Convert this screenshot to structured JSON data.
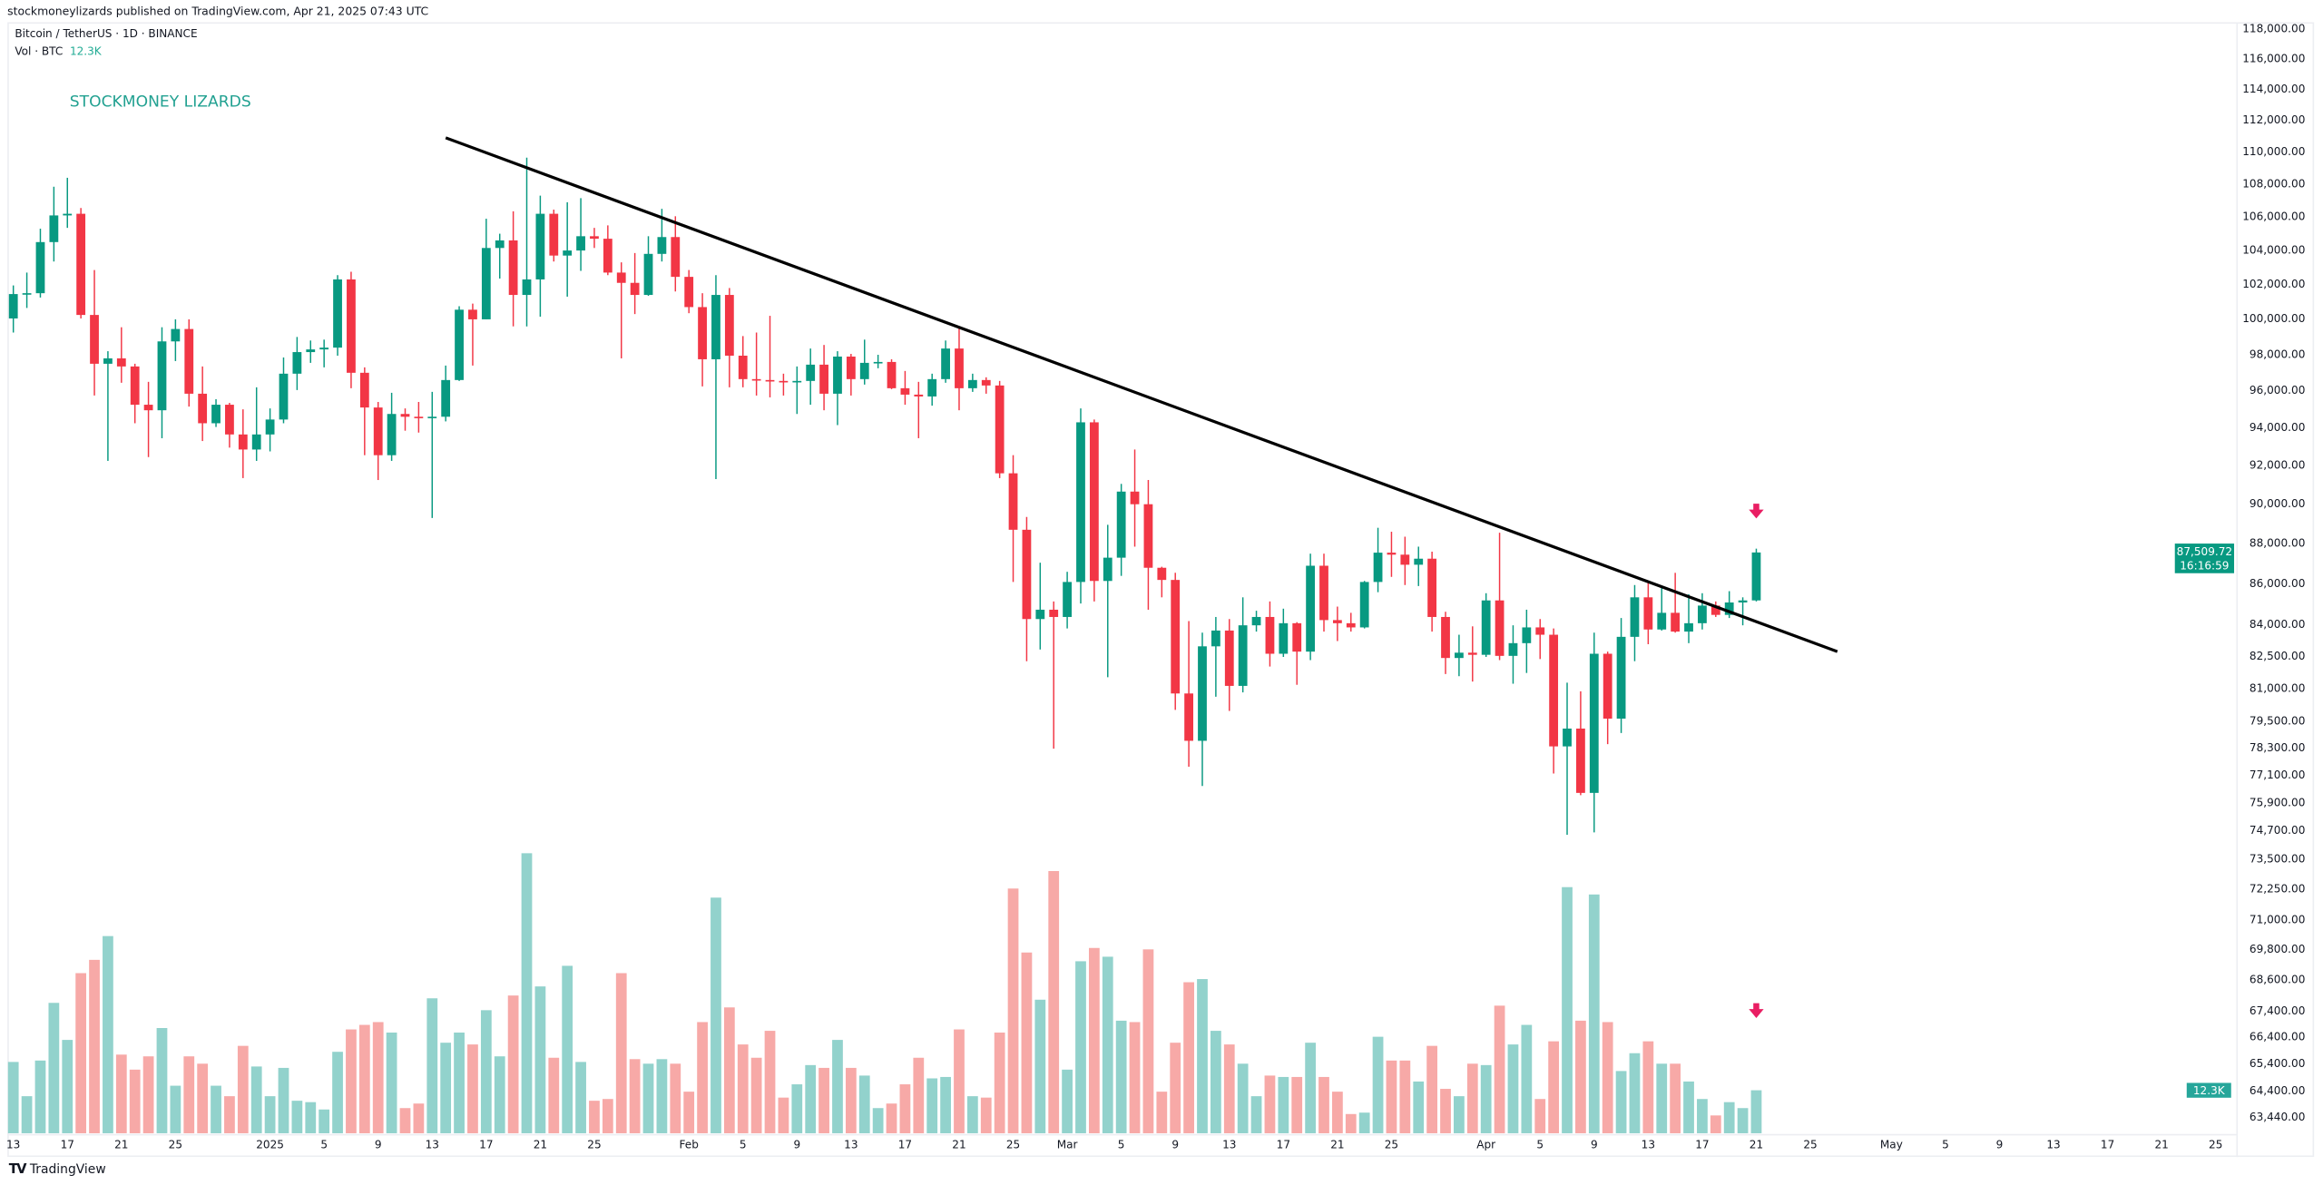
{
  "header": {
    "published": "stockmoneylizards published on TradingView.com, Apr 21, 2025 07:43 UTC"
  },
  "legend": {
    "symbol": "Bitcoin / TetherUS · 1D · BINANCE",
    "vol_label": "Vol · BTC",
    "vol_value": "12.3K"
  },
  "brand_text": "STOCKMONEY LIZARDS",
  "footer": {
    "logo": "TV",
    "name": "TradingView"
  },
  "colors": {
    "up": "#089981",
    "down": "#f23645",
    "vol_up": "#92d2cc",
    "vol_down": "#f7a9a7",
    "trendline": "#000000",
    "arrow": "#e91e63",
    "badge": "#089981",
    "vol_badge": "#26a69a"
  },
  "chart_data": {
    "type": "candlestick",
    "title": "Bitcoin / TetherUS · 1D · BINANCE",
    "y_scale": "log",
    "ylim": [
      63440,
      118000
    ],
    "price_ticks": [
      "118,000.00",
      "116,000.00",
      "114,000.00",
      "112,000.00",
      "110,000.00",
      "108,000.00",
      "106,000.00",
      "104,000.00",
      "102,000.00",
      "100,000.00",
      "98,000.00",
      "96,000.00",
      "94,000.00",
      "92,000.00",
      "90,000.00",
      "88,000.00",
      "86,000.00",
      "84,000.00",
      "82,500.00",
      "81,000.00",
      "79,500.00",
      "78,300.00",
      "77,100.00",
      "75,900.00",
      "74,700.00",
      "73,500.00",
      "72,250.00",
      "71,000.00",
      "69,800.00",
      "68,600.00",
      "67,400.00",
      "66,400.00",
      "65,400.00",
      "64,400.00",
      "63,440.00"
    ],
    "x_ticks": [
      {
        "label": "13",
        "date": "2024-12-13"
      },
      {
        "label": "17",
        "date": "2024-12-17"
      },
      {
        "label": "21",
        "date": "2024-12-21"
      },
      {
        "label": "25",
        "date": "2024-12-25"
      },
      {
        "label": "2025",
        "date": "2025-01-01"
      },
      {
        "label": "5",
        "date": "2025-01-05"
      },
      {
        "label": "9",
        "date": "2025-01-09"
      },
      {
        "label": "13",
        "date": "2025-01-13"
      },
      {
        "label": "17",
        "date": "2025-01-17"
      },
      {
        "label": "21",
        "date": "2025-01-21"
      },
      {
        "label": "25",
        "date": "2025-01-25"
      },
      {
        "label": "Feb",
        "date": "2025-02-01"
      },
      {
        "label": "5",
        "date": "2025-02-05"
      },
      {
        "label": "9",
        "date": "2025-02-09"
      },
      {
        "label": "13",
        "date": "2025-02-13"
      },
      {
        "label": "17",
        "date": "2025-02-17"
      },
      {
        "label": "21",
        "date": "2025-02-21"
      },
      {
        "label": "25",
        "date": "2025-02-25"
      },
      {
        "label": "Mar",
        "date": "2025-03-01"
      },
      {
        "label": "5",
        "date": "2025-03-05"
      },
      {
        "label": "9",
        "date": "2025-03-09"
      },
      {
        "label": "13",
        "date": "2025-03-13"
      },
      {
        "label": "17",
        "date": "2025-03-17"
      },
      {
        "label": "21",
        "date": "2025-03-21"
      },
      {
        "label": "25",
        "date": "2025-03-25"
      },
      {
        "label": "Apr",
        "date": "2025-04-01"
      },
      {
        "label": "5",
        "date": "2025-04-05"
      },
      {
        "label": "9",
        "date": "2025-04-09"
      },
      {
        "label": "13",
        "date": "2025-04-13"
      },
      {
        "label": "17",
        "date": "2025-04-17"
      },
      {
        "label": "21",
        "date": "2025-04-21"
      },
      {
        "label": "25",
        "date": "2025-04-25"
      },
      {
        "label": "May",
        "date": "2025-05-01"
      },
      {
        "label": "5",
        "date": "2025-05-05"
      },
      {
        "label": "9",
        "date": "2025-05-09"
      },
      {
        "label": "13",
        "date": "2025-05-13"
      },
      {
        "label": "17",
        "date": "2025-05-17"
      },
      {
        "label": "21",
        "date": "2025-05-21"
      },
      {
        "label": "25",
        "date": "2025-05-25"
      }
    ],
    "last_price": {
      "value": "87,509.72",
      "countdown": "16:16:59"
    },
    "last_volume": "12.3K",
    "trendline": [
      {
        "date": "2025-01-14",
        "price": 110850
      },
      {
        "date": "2025-04-27",
        "price": 82700
      }
    ],
    "annotations": [
      {
        "type": "down-arrow",
        "date": "2025-04-21",
        "price": 89600,
        "pane": "price"
      },
      {
        "type": "down-arrow",
        "date": "2025-04-21",
        "volume_k": 30,
        "pane": "volume"
      }
    ],
    "candle_fields": [
      "date",
      "open",
      "high",
      "low",
      "close",
      "volume_k"
    ],
    "candles": [
      [
        "2024-12-13",
        100000,
        101900,
        99200,
        101400,
        20.4
      ],
      [
        "2024-12-14",
        101400,
        102650,
        100600,
        101450,
        10.6
      ],
      [
        "2024-12-15",
        101450,
        105250,
        101200,
        104450,
        20.8
      ],
      [
        "2024-12-16",
        104450,
        107800,
        103300,
        106050,
        37.3
      ],
      [
        "2024-12-17",
        106050,
        108350,
        105300,
        106150,
        26.7
      ],
      [
        "2024-12-18",
        106150,
        106500,
        100000,
        100200,
        45.8
      ],
      [
        "2024-12-19",
        100200,
        102800,
        95700,
        97450,
        49.6
      ],
      [
        "2024-12-20",
        97450,
        98150,
        92200,
        97750,
        56.4
      ],
      [
        "2024-12-21",
        97750,
        99500,
        96400,
        97300,
        22.5
      ],
      [
        "2024-12-22",
        97300,
        97450,
        94200,
        95200,
        18.2
      ],
      [
        "2024-12-23",
        95200,
        96450,
        92400,
        94900,
        22.0
      ],
      [
        "2024-12-24",
        94900,
        99500,
        93400,
        98700,
        30.1
      ],
      [
        "2024-12-25",
        98700,
        99950,
        97600,
        99400,
        13.6
      ],
      [
        "2024-12-26",
        99400,
        99950,
        95100,
        95800,
        22.0
      ],
      [
        "2024-12-27",
        95800,
        97300,
        93250,
        94200,
        19.9
      ],
      [
        "2024-12-28",
        94200,
        95500,
        94000,
        95200,
        13.6
      ],
      [
        "2024-12-29",
        95200,
        95300,
        92900,
        93600,
        10.6
      ],
      [
        "2024-12-30",
        93600,
        94950,
        91300,
        92800,
        25.0
      ],
      [
        "2024-12-31",
        92800,
        96150,
        92200,
        93600,
        19.1
      ],
      [
        "2025-01-01",
        93600,
        95000,
        92700,
        94400,
        10.6
      ],
      [
        "2025-01-02",
        94400,
        97800,
        94200,
        96900,
        18.7
      ],
      [
        "2025-01-03",
        96900,
        98950,
        96000,
        98100,
        9.3
      ],
      [
        "2025-01-04",
        98100,
        98750,
        97500,
        98250,
        8.9
      ],
      [
        "2025-01-05",
        98250,
        98800,
        97250,
        98350,
        6.8
      ],
      [
        "2025-01-06",
        98350,
        102500,
        97900,
        102250,
        23.3
      ],
      [
        "2025-01-07",
        102250,
        102700,
        96100,
        96950,
        29.7
      ],
      [
        "2025-01-08",
        96950,
        97250,
        92500,
        95050,
        31.0
      ],
      [
        "2025-01-09",
        95050,
        95350,
        91200,
        92500,
        31.8
      ],
      [
        "2025-01-10",
        92500,
        95850,
        92200,
        94700,
        28.8
      ],
      [
        "2025-01-11",
        94700,
        95000,
        93800,
        94550,
        7.2
      ],
      [
        "2025-01-12",
        94550,
        95350,
        93700,
        94500,
        8.5
      ],
      [
        "2025-01-13",
        94500,
        95900,
        89250,
        94550,
        38.6
      ],
      [
        "2025-01-14",
        94550,
        97350,
        94300,
        96550,
        25.9
      ],
      [
        "2025-01-15",
        96550,
        100700,
        96500,
        100500,
        28.8
      ],
      [
        "2025-01-16",
        100500,
        100850,
        97350,
        99950,
        25.4
      ],
      [
        "2025-01-17",
        99950,
        105850,
        99950,
        104100,
        35.2
      ],
      [
        "2025-01-18",
        104100,
        104950,
        102300,
        104550,
        22.0
      ],
      [
        "2025-01-19",
        104550,
        106300,
        99550,
        101350,
        39.4
      ],
      [
        "2025-01-20",
        101350,
        109600,
        99550,
        102250,
        80.1
      ],
      [
        "2025-01-21",
        102250,
        107250,
        100100,
        106150,
        42.0
      ],
      [
        "2025-01-22",
        106150,
        106400,
        103300,
        103650,
        21.6
      ],
      [
        "2025-01-23",
        103650,
        106850,
        101250,
        103950,
        47.9
      ],
      [
        "2025-01-24",
        103950,
        107100,
        102750,
        104800,
        20.4
      ],
      [
        "2025-01-25",
        104800,
        105300,
        104100,
        104650,
        9.3
      ],
      [
        "2025-01-26",
        104650,
        105450,
        102500,
        102650,
        9.8
      ],
      [
        "2025-01-27",
        102650,
        103250,
        97750,
        102050,
        45.8
      ],
      [
        "2025-01-28",
        102050,
        103800,
        100250,
        101350,
        21.2
      ],
      [
        "2025-01-29",
        101350,
        104800,
        101300,
        103750,
        19.9
      ],
      [
        "2025-01-30",
        103750,
        106450,
        103300,
        104750,
        21.2
      ],
      [
        "2025-01-31",
        104750,
        106000,
        101550,
        102400,
        19.9
      ],
      [
        "2025-02-01",
        102400,
        102800,
        100300,
        100650,
        11.9
      ],
      [
        "2025-02-02",
        100650,
        101450,
        96200,
        97700,
        31.8
      ],
      [
        "2025-02-03",
        97700,
        102500,
        91250,
        101350,
        67.4
      ],
      [
        "2025-02-04",
        101350,
        101750,
        96150,
        97900,
        36.0
      ],
      [
        "2025-02-05",
        97900,
        99000,
        96150,
        96600,
        25.4
      ],
      [
        "2025-02-06",
        96600,
        99200,
        95700,
        96550,
        21.6
      ],
      [
        "2025-02-07",
        96550,
        100150,
        95600,
        96500,
        29.3
      ],
      [
        "2025-02-08",
        96500,
        96900,
        95700,
        96450,
        10.2
      ],
      [
        "2025-02-09",
        96450,
        97300,
        94700,
        96500,
        14.0
      ],
      [
        "2025-02-10",
        96500,
        98300,
        95200,
        97400,
        19.5
      ],
      [
        "2025-02-11",
        97400,
        98500,
        94900,
        95800,
        18.7
      ],
      [
        "2025-02-12",
        95800,
        98150,
        94100,
        97850,
        26.7
      ],
      [
        "2025-02-13",
        97850,
        98000,
        95700,
        96600,
        18.7
      ],
      [
        "2025-02-14",
        96600,
        98800,
        96300,
        97500,
        16.5
      ],
      [
        "2025-02-15",
        97500,
        97950,
        97200,
        97550,
        7.2
      ],
      [
        "2025-02-16",
        97550,
        97700,
        96050,
        96100,
        8.5
      ],
      [
        "2025-02-17",
        96100,
        97050,
        95200,
        95750,
        14.0
      ],
      [
        "2025-02-18",
        95750,
        96450,
        93400,
        95650,
        21.6
      ],
      [
        "2025-02-19",
        95650,
        96900,
        95150,
        96600,
        15.7
      ],
      [
        "2025-02-20",
        96600,
        98750,
        96400,
        98300,
        16.1
      ],
      [
        "2025-02-21",
        98300,
        99500,
        94900,
        96100,
        29.7
      ],
      [
        "2025-02-22",
        96100,
        96900,
        95900,
        96550,
        10.6
      ],
      [
        "2025-02-23",
        96550,
        96700,
        95800,
        96250,
        10.2
      ],
      [
        "2025-02-24",
        96250,
        96500,
        91300,
        91550,
        28.8
      ],
      [
        "2025-02-25",
        91550,
        92500,
        86050,
        88650,
        70.0
      ],
      [
        "2025-02-26",
        88650,
        89300,
        82250,
        84250,
        51.7
      ],
      [
        "2025-02-27",
        84250,
        87000,
        82800,
        84700,
        38.2
      ],
      [
        "2025-02-28",
        84700,
        85100,
        78250,
        84350,
        75.0
      ],
      [
        "2025-03-01",
        84350,
        86550,
        83800,
        86050,
        18.2
      ],
      [
        "2025-03-02",
        86050,
        95000,
        85000,
        94250,
        49.2
      ],
      [
        "2025-03-03",
        94250,
        94400,
        85100,
        86100,
        53.0
      ],
      [
        "2025-03-04",
        86100,
        88900,
        81500,
        87250,
        50.5
      ],
      [
        "2025-03-05",
        87250,
        91000,
        86350,
        90600,
        32.2
      ],
      [
        "2025-03-06",
        90600,
        92800,
        87800,
        89950,
        31.8
      ],
      [
        "2025-03-07",
        89950,
        91200,
        84700,
        86750,
        52.6
      ],
      [
        "2025-03-08",
        86750,
        86800,
        85300,
        86150,
        11.9
      ],
      [
        "2025-03-09",
        86150,
        86500,
        80000,
        80750,
        25.9
      ],
      [
        "2025-03-10",
        80750,
        84150,
        77450,
        78600,
        43.2
      ],
      [
        "2025-03-11",
        78600,
        83600,
        76600,
        82950,
        44.1
      ],
      [
        "2025-03-12",
        82950,
        84350,
        80600,
        83700,
        29.3
      ],
      [
        "2025-03-13",
        83700,
        84250,
        79950,
        81100,
        25.4
      ],
      [
        "2025-03-14",
        81100,
        85300,
        80800,
        83950,
        19.9
      ],
      [
        "2025-03-15",
        83950,
        84650,
        83650,
        84350,
        10.6
      ],
      [
        "2025-03-16",
        84350,
        85100,
        82000,
        82600,
        16.5
      ],
      [
        "2025-03-17",
        82600,
        84750,
        82450,
        84050,
        16.1
      ],
      [
        "2025-03-18",
        84050,
        84100,
        81150,
        82700,
        16.1
      ],
      [
        "2025-03-19",
        82700,
        87450,
        82300,
        86850,
        25.9
      ],
      [
        "2025-03-20",
        86850,
        87450,
        83650,
        84200,
        16.1
      ],
      [
        "2025-03-21",
        84200,
        84850,
        83200,
        84050,
        11.9
      ],
      [
        "2025-03-22",
        84050,
        84550,
        83650,
        83850,
        5.5
      ],
      [
        "2025-03-23",
        83850,
        86100,
        83800,
        86050,
        5.9
      ],
      [
        "2025-03-24",
        86050,
        88750,
        85550,
        87500,
        27.6
      ],
      [
        "2025-03-25",
        87500,
        88550,
        86300,
        87400,
        20.8
      ],
      [
        "2025-03-26",
        87400,
        88300,
        85900,
        86900,
        20.8
      ],
      [
        "2025-03-27",
        86900,
        87800,
        85850,
        87200,
        14.8
      ],
      [
        "2025-03-28",
        87200,
        87550,
        83650,
        84350,
        25.0
      ],
      [
        "2025-03-29",
        84350,
        84600,
        81650,
        82400,
        12.7
      ],
      [
        "2025-03-30",
        82400,
        83500,
        81550,
        82650,
        10.6
      ],
      [
        "2025-03-31",
        82650,
        83900,
        81300,
        82550,
        19.9
      ],
      [
        "2025-04-01",
        82550,
        85500,
        82450,
        85150,
        19.5
      ],
      [
        "2025-04-02",
        85150,
        88500,
        82300,
        82500,
        36.5
      ],
      [
        "2025-04-03",
        82500,
        83950,
        81200,
        83100,
        25.4
      ],
      [
        "2025-04-04",
        83100,
        84700,
        81700,
        83850,
        31.0
      ],
      [
        "2025-04-05",
        83850,
        84250,
        82350,
        83500,
        9.8
      ],
      [
        "2025-04-06",
        83500,
        83800,
        77150,
        78350,
        26.3
      ],
      [
        "2025-04-07",
        78350,
        81250,
        74500,
        79150,
        70.4
      ],
      [
        "2025-04-08",
        79150,
        80850,
        76200,
        76300,
        32.2
      ],
      [
        "2025-04-09",
        76300,
        83600,
        74600,
        82600,
        68.3
      ],
      [
        "2025-04-10",
        82600,
        82700,
        78450,
        79600,
        31.8
      ],
      [
        "2025-04-11",
        79600,
        84300,
        78950,
        83400,
        17.8
      ],
      [
        "2025-04-12",
        83400,
        85900,
        82250,
        85300,
        22.9
      ],
      [
        "2025-04-13",
        85300,
        86100,
        83050,
        83750,
        26.3
      ],
      [
        "2025-04-14",
        83750,
        85800,
        83700,
        84550,
        19.9
      ],
      [
        "2025-04-15",
        84550,
        86500,
        83600,
        83650,
        19.9
      ],
      [
        "2025-04-16",
        83650,
        85450,
        83100,
        84050,
        14.8
      ],
      [
        "2025-04-17",
        84050,
        85500,
        83750,
        84900,
        9.8
      ],
      [
        "2025-04-18",
        84900,
        85100,
        84350,
        84450,
        5.1
      ],
      [
        "2025-04-19",
        84450,
        85600,
        84300,
        85050,
        8.9
      ],
      [
        "2025-04-20",
        85050,
        85300,
        83950,
        85150,
        7.2
      ],
      [
        "2025-04-21",
        85150,
        87700,
        85100,
        87509.72,
        12.3
      ]
    ]
  }
}
